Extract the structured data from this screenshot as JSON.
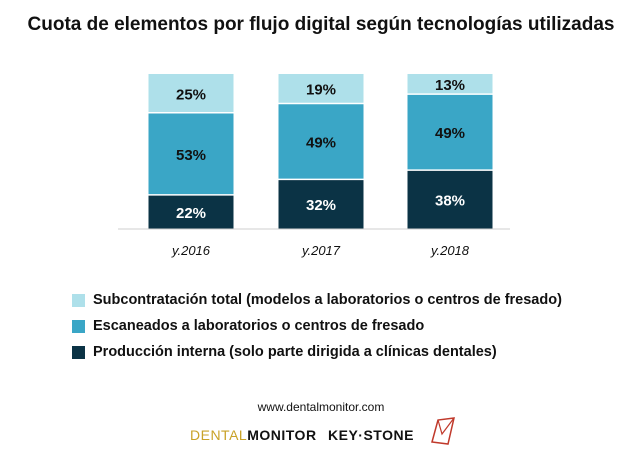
{
  "chart_data": {
    "type": "bar",
    "stacked": true,
    "title": "Cuota de elementos por flujo digital según tecnologías utilizadas",
    "categories": [
      "y.2016",
      "y.2017",
      "y.2018"
    ],
    "ylim": [
      0,
      100
    ],
    "series": [
      {
        "name": "Producción interna (solo parte dirigida a clínicas dentales)",
        "values": [
          22,
          32,
          38
        ],
        "labels": [
          "22%",
          "32%",
          "38%"
        ],
        "color": "#0b3345",
        "text_color": "#ffffff"
      },
      {
        "name": "Escaneados a laboratorios o centros de fresado",
        "values": [
          53,
          49,
          49
        ],
        "labels": [
          "53%",
          "49%",
          "49%"
        ],
        "color": "#3aa6c6",
        "text_color": "#111111"
      },
      {
        "name": "Subcontratación total (modelos a laboratorios o centros de fresado)",
        "values": [
          25,
          19,
          13
        ],
        "labels": [
          "25%",
          "19%",
          "13%"
        ],
        "color": "#aee0ea",
        "text_color": "#111111"
      }
    ],
    "legend_position": "bottom",
    "legend_order": [
      2,
      1,
      0
    ],
    "grid": false
  },
  "footer": {
    "source_url": "www.dentalmonitor.com",
    "logo_dental_thin": "DENTAL",
    "logo_dental_bold": "MONITOR",
    "logo_keystone": "KEY·STONE"
  }
}
